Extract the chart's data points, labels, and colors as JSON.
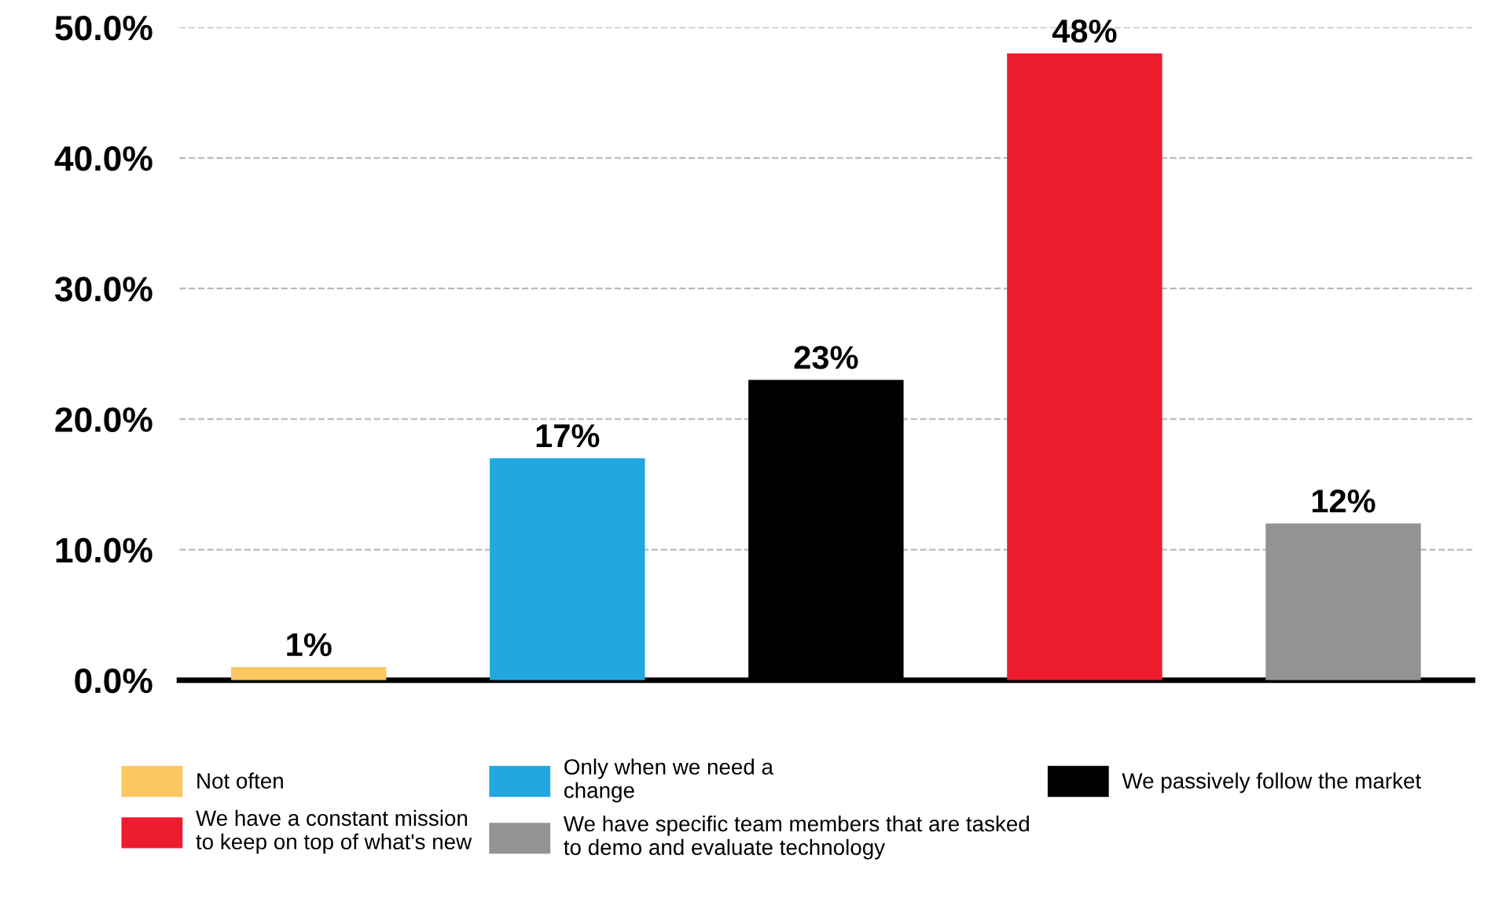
{
  "chart_data": {
    "type": "bar",
    "categories": [
      null,
      null,
      null,
      null,
      null
    ],
    "series": [
      {
        "name": "Not often",
        "color": "#fcc761",
        "values": [
          1,
          null,
          null,
          null,
          null
        ],
        "value_labels": [
          "1%",
          null,
          null,
          null,
          null
        ]
      },
      {
        "name": "Only when we need a\nchange",
        "color": "#21a8e0",
        "values": [
          null,
          17,
          null,
          null,
          null
        ],
        "value_labels": [
          null,
          "17%",
          null,
          null,
          null
        ]
      },
      {
        "name": "We passively follow the market",
        "color": "#000000",
        "values": [
          null,
          null,
          23,
          null,
          null
        ],
        "value_labels": [
          null,
          null,
          "23%",
          null,
          null
        ]
      },
      {
        "name": "We have a constant mission\nto keep on top of what's new",
        "color": "#ed1c2e",
        "values": [
          null,
          null,
          null,
          48,
          null
        ],
        "value_labels": [
          null,
          null,
          null,
          "48%",
          null
        ]
      },
      {
        "name": "We have specific team members that are tasked\nto demo and evaluate technology",
        "color": "#939393",
        "values": [
          null,
          null,
          null,
          null,
          12
        ],
        "value_labels": [
          null,
          null,
          null,
          null,
          "12%"
        ]
      }
    ],
    "ylim": [
      0,
      50
    ],
    "yticks": [
      {
        "value": 0,
        "label": "0.0%"
      },
      {
        "value": 10,
        "label": "10.0%"
      },
      {
        "value": 20,
        "label": "20.0%"
      },
      {
        "value": 30,
        "label": "30.0%"
      },
      {
        "value": 40,
        "label": "40.0%"
      },
      {
        "value": 50,
        "label": "50.0%"
      }
    ],
    "grid": "y",
    "legend": "bottom"
  }
}
